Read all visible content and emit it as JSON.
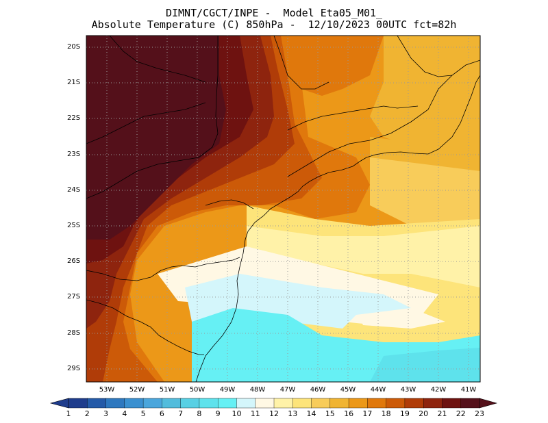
{
  "header": {
    "line1": "DIMNT/CGCT/INPE -  Model Eta05_M01_",
    "line2": "Absolute Temperature (C) 850hPa -  12/10/2023 00UTC fct=82h"
  },
  "axes": {
    "lat_labels": [
      "20S",
      "21S",
      "22S",
      "23S",
      "24S",
      "25S",
      "26S",
      "27S",
      "28S",
      "29S"
    ],
    "lon_labels": [
      "53W",
      "52W",
      "51W",
      "50W",
      "49W",
      "48W",
      "47W",
      "46W",
      "45W",
      "44W",
      "43W",
      "42W",
      "41W"
    ]
  },
  "colorbar": {
    "labels": [
      "1",
      "2",
      "3",
      "4",
      "5",
      "6",
      "7",
      "8",
      "9",
      "10",
      "11",
      "12",
      "13",
      "14",
      "15",
      "16",
      "17",
      "18",
      "19",
      "20",
      "21",
      "22",
      "23"
    ],
    "colors": [
      "#1e3c8c",
      "#245aa8",
      "#2e78bf",
      "#3a90d0",
      "#4aa6dc",
      "#52bcdc",
      "#58d0e4",
      "#5ee2ec",
      "#66f0f4",
      "#d4f6fb",
      "#fff8e4",
      "#fff2a8",
      "#fde47a",
      "#f8cc5a",
      "#f0b432",
      "#ec9818",
      "#e0780c",
      "#cc5a08",
      "#b03c08",
      "#8e240e",
      "#6e1210",
      "#54101a"
    ]
  },
  "field": {
    "regions": [
      {
        "name": "ne-orange",
        "color": "#ec9818"
      },
      {
        "name": "east-amber",
        "color": "#f0b432"
      },
      {
        "name": "southeast-yellow",
        "color": "#f8cc5a"
      },
      {
        "name": "light-yellow",
        "color": "#fde47a"
      },
      {
        "name": "pale-yellow",
        "color": "#fff2a8"
      },
      {
        "name": "cream",
        "color": "#fff8e4"
      },
      {
        "name": "light-cyan",
        "color": "#d4f6fb"
      },
      {
        "name": "cyan",
        "color": "#66f0f4"
      },
      {
        "name": "teal",
        "color": "#5ee2ec"
      },
      {
        "name": "warm-orange",
        "color": "#e0780c"
      },
      {
        "name": "dark-orange",
        "color": "#cc5a08"
      },
      {
        "name": "brown-red",
        "color": "#b03c08"
      },
      {
        "name": "maroon",
        "color": "#8e240e"
      },
      {
        "name": "dark-maroon",
        "color": "#6e1210"
      },
      {
        "name": "darkest",
        "color": "#54101a"
      }
    ]
  }
}
